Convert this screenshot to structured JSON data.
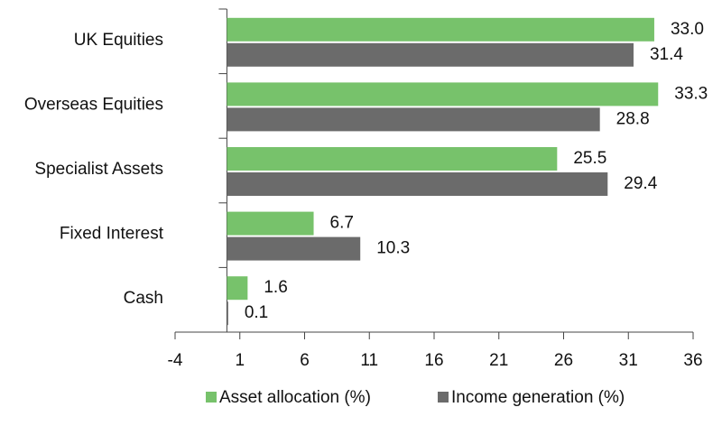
{
  "chart_data": {
    "type": "hbar",
    "categories": [
      "UK Equities",
      "Overseas Equities",
      "Specialist Assets",
      "Fixed Interest",
      "Cash"
    ],
    "series": [
      {
        "name": "Asset allocation (%)",
        "color": "#77c26b",
        "values": [
          33.0,
          33.3,
          25.5,
          6.7,
          1.6
        ],
        "value_labels": [
          "33.0",
          "33.3",
          "25.5",
          "6.7",
          "1.6"
        ]
      },
      {
        "name": "Income generation (%)",
        "color": "#6b6b6b",
        "values": [
          31.4,
          28.8,
          29.4,
          10.3,
          0.1
        ],
        "value_labels": [
          "31.4",
          "28.8",
          "29.4",
          "10.3",
          "0.1"
        ]
      }
    ],
    "xlim": [
      -4,
      36
    ],
    "xticks": [
      -4,
      1,
      6,
      11,
      16,
      21,
      26,
      31,
      36
    ],
    "legend": "bottom"
  }
}
